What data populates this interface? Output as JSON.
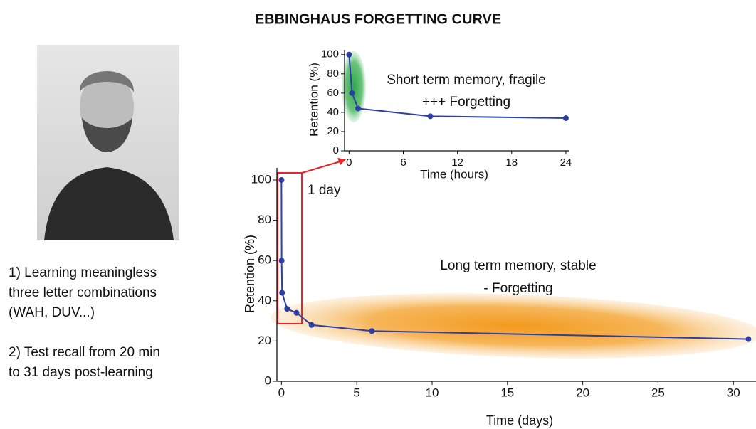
{
  "title": "EBBINGHAUS FORGETTING CURVE",
  "notes": [
    [
      "1) Learning meaningless",
      "three letter combinations",
      "(WAH, DUV...)"
    ],
    [
      "2) Test recall from 20 min",
      "to 31 days post-learning"
    ]
  ],
  "chart_data": [
    {
      "type": "line",
      "x_label": "Time (days)",
      "y_label": "Retention (%)",
      "x": [
        0,
        0.0139,
        0.0417,
        0.375,
        1,
        2,
        6,
        31
      ],
      "series": [
        {
          "color": "#2e3fa3",
          "values": [
            100,
            60,
            44,
            36,
            34,
            28,
            25,
            21
          ]
        }
      ],
      "xlim": [
        -0.3,
        31.5
      ],
      "ylim": [
        0,
        106
      ],
      "xticks": [
        0,
        5,
        10,
        15,
        20,
        25,
        30
      ],
      "yticks": [
        0,
        20,
        40,
        60,
        80,
        100
      ],
      "annotations": [
        "1 day",
        "Long term memory, stable",
        "- Forgetting"
      ]
    },
    {
      "type": "line",
      "x_label": "Time (hours)",
      "y_label": "Retention (%)",
      "x": [
        0,
        0.33,
        1,
        9,
        24
      ],
      "series": [
        {
          "color": "#2e3fa3",
          "values": [
            100,
            60,
            44,
            36,
            34
          ]
        }
      ],
      "xlim": [
        -0.5,
        24.4
      ],
      "ylim": [
        0,
        105
      ],
      "xticks": [
        0,
        6,
        12,
        18,
        24
      ],
      "yticks": [
        0,
        20,
        40,
        60,
        80,
        100
      ],
      "annotations": [
        "Short term memory, fragile",
        "+++ Forgetting"
      ]
    }
  ]
}
